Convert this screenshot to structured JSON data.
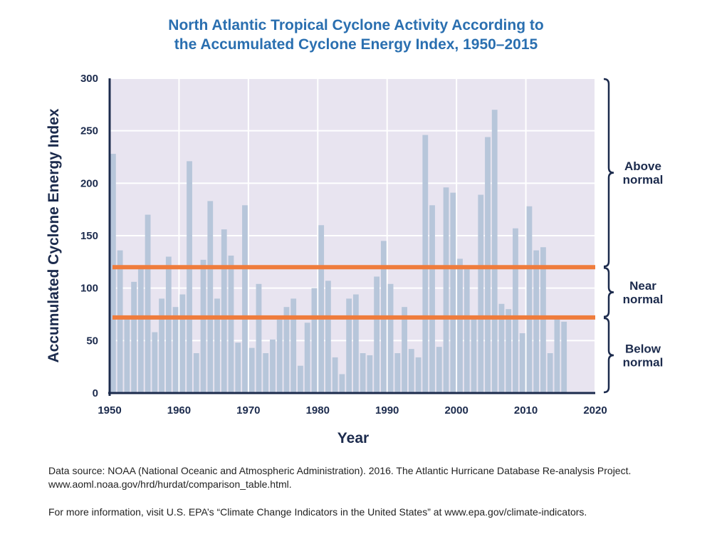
{
  "chart_data": {
    "type": "bar",
    "title_lines": [
      "North Atlantic Tropical Cyclone Activity According to",
      "the Accumulated Cyclone Energy Index, 1950–2015"
    ],
    "xlabel": "Year",
    "ylabel": "Accumulated Cyclone Energy Index",
    "xlim": [
      1950,
      2020
    ],
    "ylim": [
      0,
      300
    ],
    "x_ticks": [
      1950,
      1960,
      1970,
      1980,
      1990,
      2000,
      2010,
      2020
    ],
    "y_ticks": [
      0,
      50,
      100,
      150,
      200,
      250,
      300
    ],
    "grid": true,
    "years": [
      1950,
      1951,
      1952,
      1953,
      1954,
      1955,
      1956,
      1957,
      1958,
      1959,
      1960,
      1961,
      1962,
      1963,
      1964,
      1965,
      1966,
      1967,
      1968,
      1969,
      1970,
      1971,
      1972,
      1973,
      1974,
      1975,
      1976,
      1977,
      1978,
      1979,
      1980,
      1981,
      1982,
      1983,
      1984,
      1985,
      1986,
      1987,
      1988,
      1989,
      1990,
      1991,
      1992,
      1993,
      1994,
      1995,
      1996,
      1997,
      1998,
      1999,
      2000,
      2001,
      2002,
      2003,
      2004,
      2005,
      2006,
      2007,
      2008,
      2009,
      2010,
      2011,
      2012,
      2013,
      2014,
      2015
    ],
    "values": [
      228,
      136,
      73,
      106,
      119,
      170,
      58,
      90,
      130,
      82,
      94,
      221,
      38,
      127,
      183,
      90,
      156,
      131,
      48,
      179,
      43,
      104,
      38,
      51,
      70,
      82,
      90,
      26,
      67,
      100,
      160,
      107,
      34,
      18,
      90,
      94,
      38,
      36,
      111,
      145,
      104,
      38,
      82,
      42,
      34,
      246,
      179,
      44,
      196,
      191,
      128,
      118,
      72,
      189,
      244,
      270,
      85,
      80,
      157,
      57,
      178,
      136,
      139,
      38,
      72,
      68
    ],
    "reference_lines": [
      {
        "name": "upper-threshold",
        "value": 120,
        "color": "#ef7c3c"
      },
      {
        "name": "lower-threshold",
        "value": 72,
        "color": "#ef7c3c"
      }
    ],
    "bands": [
      {
        "name": "above-normal",
        "lines": [
          "Above",
          "normal"
        ],
        "from": 120,
        "to": 300
      },
      {
        "name": "near-normal",
        "lines": [
          "Near",
          "normal"
        ],
        "from": 72,
        "to": 120
      },
      {
        "name": "below-normal",
        "lines": [
          "Below",
          "normal"
        ],
        "from": 0,
        "to": 72
      }
    ],
    "colors": {
      "bar": "#b7c6da",
      "plot_background": "#e8e4f0",
      "grid": "#ffffff",
      "axis": "#1c2b4d",
      "title": "#2a6fb0"
    }
  },
  "footer": {
    "source": "Data source: NOAA (National Oceanic and Atmospheric Administration). 2016. The Atlantic Hurricane Database Re-analysis Project. www.aoml.noaa.gov/hrd/hurdat/comparison_table.html.",
    "more_info": "For more information, visit U.S. EPA’s “Climate Change Indicators in the United States” at www.epa.gov/climate-indicators."
  }
}
